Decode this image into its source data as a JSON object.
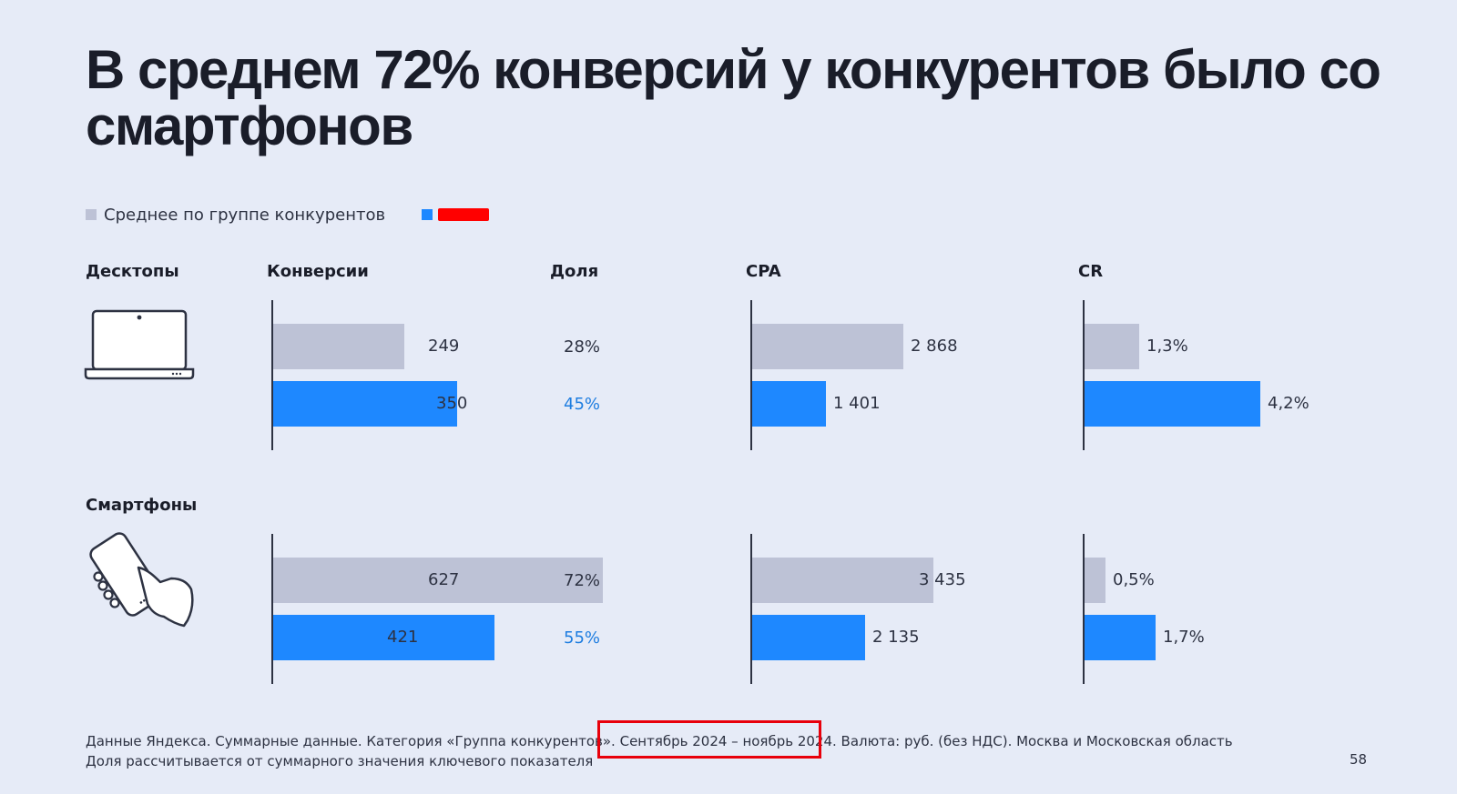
{
  "title": "В среднем 72% конверсий у конкурентов было со смартфонов",
  "legend": {
    "items": [
      {
        "label": "Среднее по группе конкурентов",
        "color": "#bdc2d6"
      },
      {
        "label": "",
        "color": "#1e88ff",
        "redacted": true
      }
    ]
  },
  "columns": {
    "conversions": "Конверсии",
    "share": "Доля",
    "cpa": "CPA",
    "cr": "CR"
  },
  "rows": [
    {
      "label": "Десктопы",
      "icon": "laptop-icon"
    },
    {
      "label": "Смартфоны",
      "icon": "smartphone-in-hand-icon"
    }
  ],
  "chart_data": [
    {
      "type": "bar",
      "title": "Конверсии",
      "categories": [
        "Десктопы",
        "Смартфоны"
      ],
      "series": [
        {
          "name": "Среднее по группе конкурентов",
          "values": [
            249,
            627
          ],
          "labels": [
            "249",
            "627"
          ]
        },
        {
          "name": "",
          "values": [
            350,
            421
          ],
          "labels": [
            "350",
            "421"
          ]
        }
      ],
      "share": {
        "competitors": [
          "28%",
          "72%"
        ],
        "own": [
          "45%",
          "55%"
        ]
      }
    },
    {
      "type": "bar",
      "title": "CPA",
      "categories": [
        "Десктопы",
        "Смартфоны"
      ],
      "series": [
        {
          "name": "Среднее по группе конкурентов",
          "values": [
            2868,
            3435
          ],
          "labels": [
            "2 868",
            "3 435"
          ]
        },
        {
          "name": "",
          "values": [
            1401,
            2135
          ],
          "labels": [
            "1 401",
            "2 135"
          ]
        }
      ]
    },
    {
      "type": "bar",
      "title": "CR",
      "categories": [
        "Десктопы",
        "Смартфоны"
      ],
      "series": [
        {
          "name": "Среднее по группе конкурентов",
          "values": [
            1.3,
            0.5
          ],
          "labels": [
            "1,3%",
            "0,5%"
          ]
        },
        {
          "name": "",
          "values": [
            4.2,
            1.7
          ],
          "labels": [
            "4,2%",
            "1,7%"
          ]
        }
      ]
    }
  ],
  "footnote": {
    "line1": "Данные Яндекса. Суммарные данные. Категория «Группа конкурентов». Сентябрь 2024 – ноябрь 2024. Валюта: руб. (без НДС). Москва и Московская область",
    "line2": "Доля рассчитывается от суммарного значения ключевого показателя"
  },
  "page_number": "58",
  "colors": {
    "background": "#e6ebf7",
    "competitors": "#bdc2d6",
    "own": "#1e88ff",
    "highlight": "#e8000b"
  }
}
